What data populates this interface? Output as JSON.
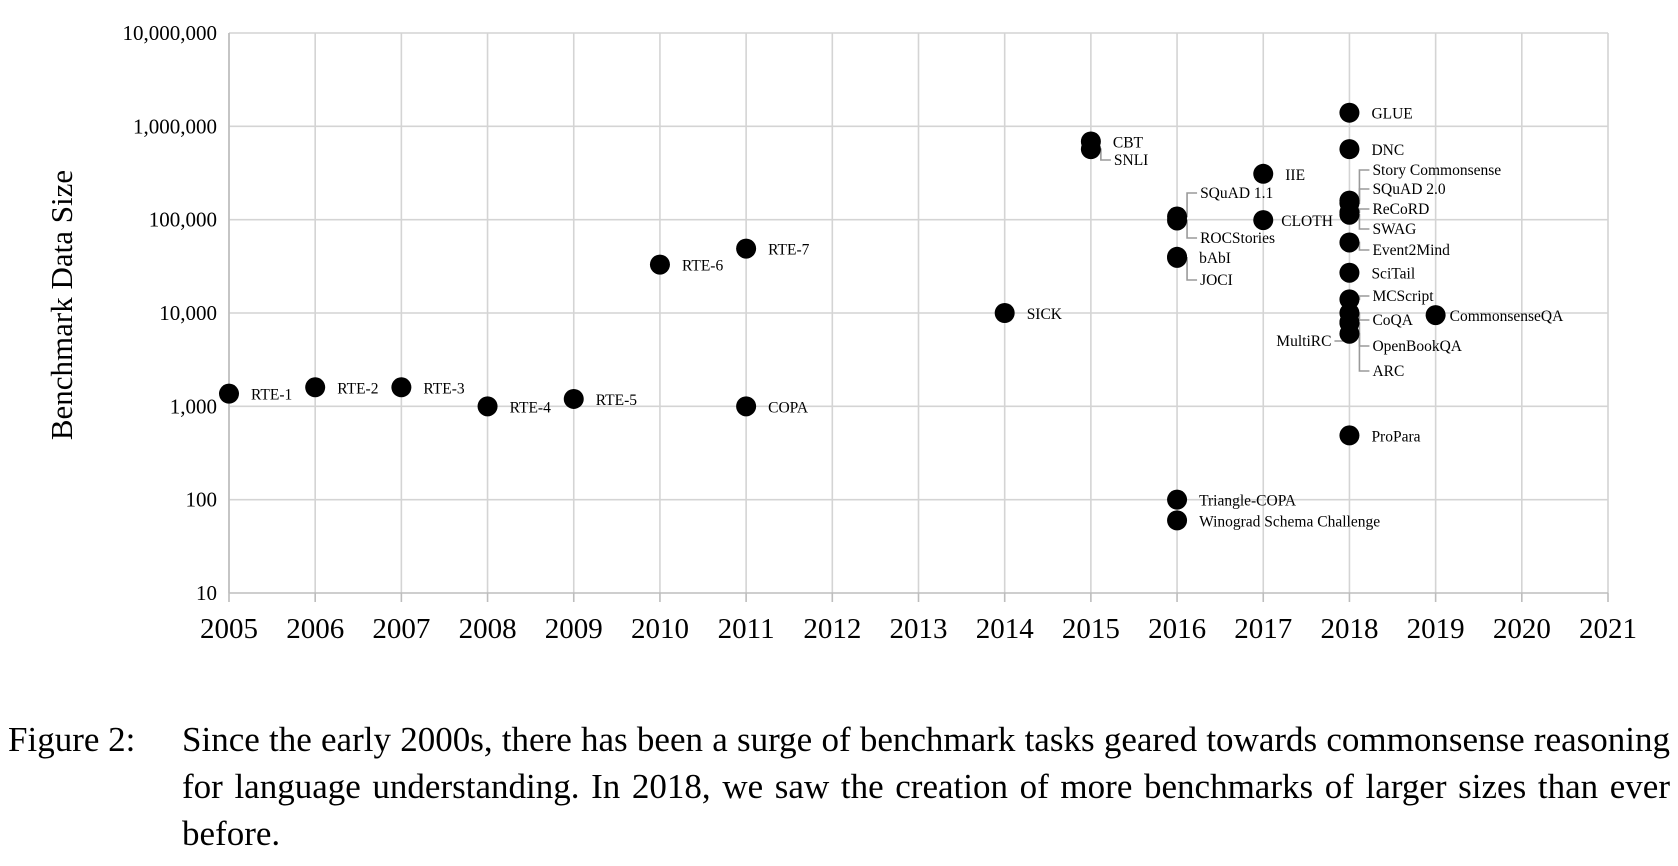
{
  "chart_data": {
    "type": "scatter",
    "title": "",
    "xlabel": "",
    "ylabel": "Benchmark Data Size",
    "yscale": "log",
    "xlim": [
      2005,
      2021
    ],
    "ylim": [
      10,
      10000000
    ],
    "grid": true,
    "legend": "none",
    "x_ticks": [
      "2005",
      "2006",
      "2007",
      "2008",
      "2009",
      "2010",
      "2011",
      "2012",
      "2013",
      "2014",
      "2015",
      "2016",
      "2017",
      "2018",
      "2019",
      "2020",
      "2021"
    ],
    "y_ticks": [
      "10",
      "100",
      "1,000",
      "10,000",
      "100,000",
      "1,000,000",
      "10,000,000"
    ],
    "points": [
      {
        "label": "RTE-1",
        "x": 2005,
        "y": 1367
      },
      {
        "label": "RTE-2",
        "x": 2006,
        "y": 1600
      },
      {
        "label": "RTE-3",
        "x": 2007,
        "y": 1600
      },
      {
        "label": "RTE-4",
        "x": 2008,
        "y": 1000
      },
      {
        "label": "RTE-5",
        "x": 2009,
        "y": 1200
      },
      {
        "label": "RTE-6",
        "x": 2010,
        "y": 33000
      },
      {
        "label": "RTE-7",
        "x": 2011,
        "y": 49000
      },
      {
        "label": "COPA",
        "x": 2011,
        "y": 1000
      },
      {
        "label": "SICK",
        "x": 2014,
        "y": 10000
      },
      {
        "label": "CBT",
        "x": 2015,
        "y": 688000
      },
      {
        "label": "SNLI",
        "x": 2015,
        "y": 570000
      },
      {
        "label": "SQuAD 1.1",
        "x": 2016,
        "y": 108000
      },
      {
        "label": "ROCStories",
        "x": 2016,
        "y": 98000
      },
      {
        "label": "bAbI",
        "x": 2016,
        "y": 40000
      },
      {
        "label": "JOCI",
        "x": 2016,
        "y": 39000
      },
      {
        "label": "Triangle-COPA",
        "x": 2016,
        "y": 100
      },
      {
        "label": "Winograd Schema Challenge",
        "x": 2016,
        "y": 60
      },
      {
        "label": "IIE",
        "x": 2017,
        "y": 310000
      },
      {
        "label": "CLOTH",
        "x": 2017,
        "y": 99000
      },
      {
        "label": "GLUE",
        "x": 2018,
        "y": 1400000
      },
      {
        "label": "DNC",
        "x": 2018,
        "y": 570000
      },
      {
        "label": "Story Commonsense",
        "x": 2018,
        "y": 160000
      },
      {
        "label": "SQuAD 2.0",
        "x": 2018,
        "y": 150000
      },
      {
        "label": "ReCoRD",
        "x": 2018,
        "y": 120000
      },
      {
        "label": "SWAG",
        "x": 2018,
        "y": 113000
      },
      {
        "label": "Event2Mind",
        "x": 2018,
        "y": 57000
      },
      {
        "label": "SciTail",
        "x": 2018,
        "y": 27000
      },
      {
        "label": "MCScript",
        "x": 2018,
        "y": 14000
      },
      {
        "label": "CoQA",
        "x": 2018,
        "y": 10000
      },
      {
        "label": "MultiRC",
        "x": 2018,
        "y": 8000
      },
      {
        "label": "OpenBookQA",
        "x": 2018,
        "y": 6000
      },
      {
        "label": "ARC",
        "x": 2018,
        "y": 7800
      },
      {
        "label": "ProPara",
        "x": 2018,
        "y": 488
      },
      {
        "label": "CommonsenseQA",
        "x": 2019,
        "y": 9500
      }
    ]
  },
  "caption": {
    "prefix": "Figure 2:",
    "text": "Since the early 2000s, there has been a surge of benchmark tasks geared towards com­monsense reasoning for language understanding. In 2018, we saw the creation of more benchmarks of larger sizes than ever before."
  }
}
